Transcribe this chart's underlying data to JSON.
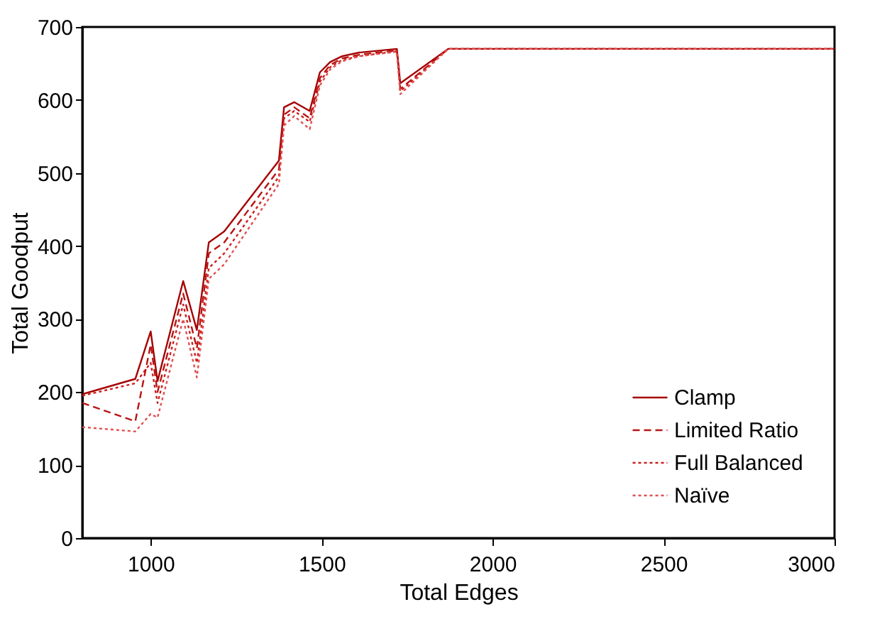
{
  "chart_data": {
    "type": "line",
    "xlabel": "Total Edges",
    "ylabel": "Total Goodput",
    "x": [
      800,
      955,
      1000,
      1020,
      1095,
      1135,
      1170,
      1215,
      1375,
      1390,
      1420,
      1465,
      1495,
      1525,
      1560,
      1610,
      1720,
      1730,
      1870,
      3000
    ],
    "series": [
      {
        "name": "Clamp",
        "color": "#a50000",
        "line_style": "solid",
        "values": [
          197,
          218,
          283,
          215,
          352,
          285,
          405,
          420,
          517,
          590,
          597,
          585,
          638,
          652,
          660,
          665,
          670,
          623,
          670,
          670
        ]
      },
      {
        "name": "Limited Ratio",
        "color": "#b81414",
        "line_style": "dashed",
        "values": [
          185,
          160,
          265,
          200,
          335,
          260,
          390,
          405,
          505,
          580,
          590,
          575,
          630,
          648,
          657,
          662,
          668,
          615,
          670,
          670
        ]
      },
      {
        "name": "Full Balanced",
        "color": "#cc1f1f",
        "line_style": "dotted",
        "values": [
          195,
          212,
          240,
          185,
          320,
          240,
          370,
          390,
          495,
          575,
          585,
          570,
          625,
          645,
          655,
          660,
          667,
          612,
          670,
          670
        ]
      },
      {
        "name": "Naïve",
        "color": "#e05050",
        "line_style": "dotted",
        "values": [
          152,
          146,
          170,
          165,
          300,
          220,
          355,
          375,
          485,
          565,
          578,
          560,
          620,
          642,
          653,
          660,
          666,
          608,
          670,
          670
        ]
      }
    ],
    "xlim": [
      800,
      3000
    ],
    "xticks": [
      1000,
      1500,
      2000,
      2500,
      3000
    ],
    "ylim": [
      0,
      700
    ],
    "yticks": [
      0,
      100,
      200,
      300,
      400,
      500,
      600,
      700
    ],
    "grid": false,
    "legend": "bottom right",
    "marker": "none"
  }
}
